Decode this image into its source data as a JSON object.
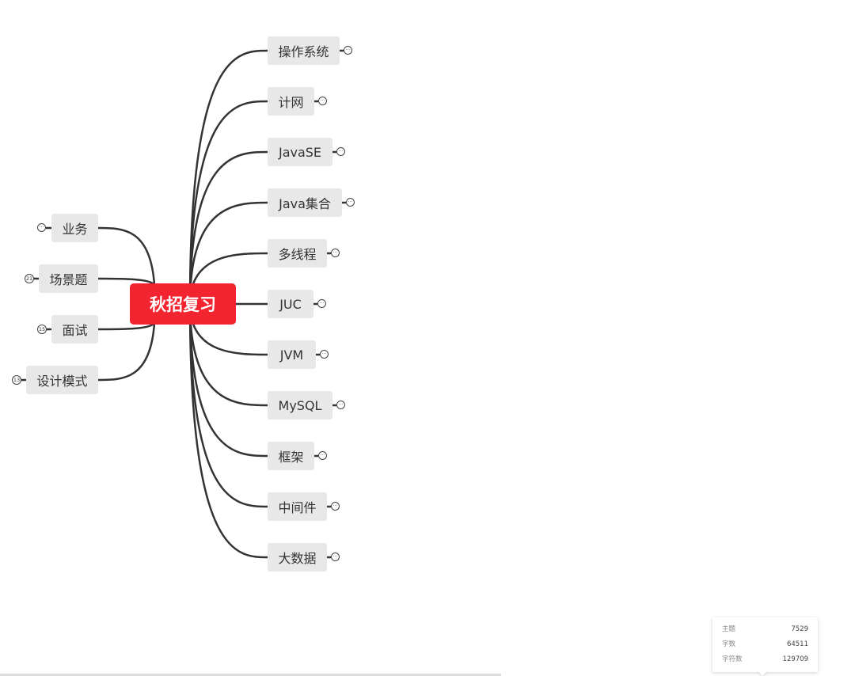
{
  "central_topic": "秋招复习",
  "right_topics": [
    {
      "label": "操作系统",
      "collapse_symbol": "···"
    },
    {
      "label": "计网",
      "collapse_symbol": "···"
    },
    {
      "label": "JavaSE",
      "collapse_symbol": "···"
    },
    {
      "label": "Java集合",
      "collapse_symbol": "···"
    },
    {
      "label": "多线程",
      "collapse_symbol": "···"
    },
    {
      "label": "JUC",
      "collapse_symbol": "···"
    },
    {
      "label": "JVM",
      "collapse_symbol": "···"
    },
    {
      "label": "MySQL",
      "collapse_symbol": "···"
    },
    {
      "label": "框架",
      "collapse_symbol": "···"
    },
    {
      "label": "中间件",
      "collapse_symbol": "···"
    },
    {
      "label": "大数据",
      "collapse_symbol": "···"
    }
  ],
  "left_topics": [
    {
      "label": "业务",
      "badge": "···"
    },
    {
      "label": "场景题",
      "badge": "21"
    },
    {
      "label": "面试",
      "badge": "15"
    },
    {
      "label": "设计模式",
      "badge": "13"
    }
  ],
  "stats": {
    "rows": [
      {
        "label": "主题",
        "value": "7529"
      },
      {
        "label": "字数",
        "value": "64511"
      },
      {
        "label": "字符数",
        "value": "129709"
      }
    ]
  },
  "colors": {
    "central_bg": "#f2242f",
    "topic_bg": "#e8e8e8",
    "connector": "#333333"
  }
}
